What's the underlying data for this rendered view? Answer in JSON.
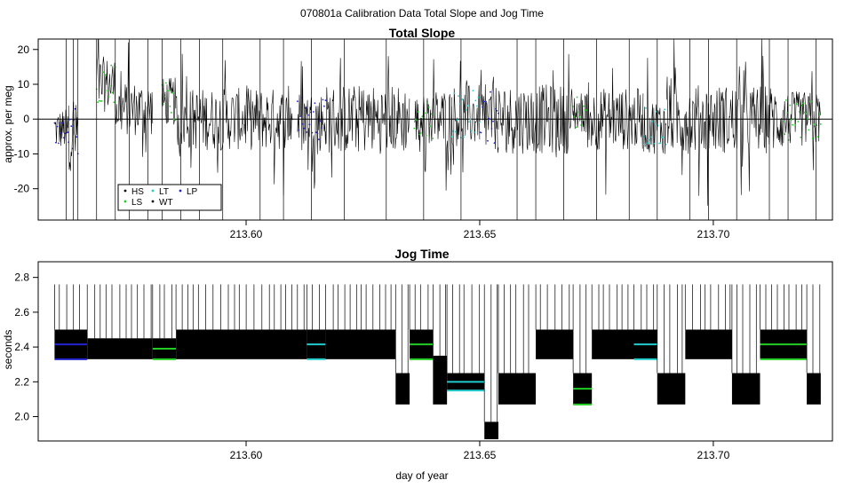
{
  "figure": {
    "title": "070801a   Calibration Data Total Slope and Jog Time",
    "xlabel": "day of year"
  },
  "colors": {
    "HS": "#000000",
    "LS": "#22cc22",
    "LT": "#22cccc",
    "WT": "#000000",
    "LP": "#2222cc",
    "trace": "#000000"
  },
  "chart_data": [
    {
      "type": "line",
      "title": "Total Slope",
      "xlabel": "",
      "ylabel": "approx. per meg",
      "xlim": [
        213.5555,
        213.7255
      ],
      "ylim": [
        -29,
        23
      ],
      "xticks": [
        213.6,
        213.65,
        213.7
      ],
      "xtick_labels": [
        "213.60",
        "213.65",
        "213.70"
      ],
      "yticks": [
        -20,
        -10,
        0,
        10,
        20
      ],
      "ytick_labels": [
        "-20",
        "-10",
        "0",
        "10",
        "20"
      ],
      "reference_line_y": 0,
      "legend": {
        "placement": "bottom-left",
        "entries": [
          {
            "label": "HS",
            "color": "#000000"
          },
          {
            "label": "LT",
            "color": "#22cccc"
          },
          {
            "label": "LP",
            "color": "#2222cc"
          },
          {
            "label": "LS",
            "color": "#22cc22"
          },
          {
            "label": "WT",
            "color": "#000000"
          }
        ]
      },
      "noise_bands": [
        {
          "x_start": 213.559,
          "x_end": 213.562,
          "center": -3,
          "spread": 6,
          "color": "LP"
        },
        {
          "x_start": 213.562,
          "x_end": 213.564,
          "center": -5,
          "spread": 10,
          "color": "LP"
        },
        {
          "x_start": 213.568,
          "x_end": 213.572,
          "center": 10,
          "spread": 8,
          "color": "LS"
        },
        {
          "x_start": 213.572,
          "x_end": 213.58,
          "center": 3,
          "spread": 8,
          "color": "HS"
        },
        {
          "x_start": 213.582,
          "x_end": 213.585,
          "center": 5,
          "spread": 7,
          "color": "LS"
        },
        {
          "x_start": 213.585,
          "x_end": 213.61,
          "center": 0,
          "spread": 9,
          "color": "HS"
        },
        {
          "x_start": 213.611,
          "x_end": 213.617,
          "center": 0,
          "spread": 8,
          "color": "LP"
        },
        {
          "x_start": 213.617,
          "x_end": 213.635,
          "center": 0,
          "spread": 10,
          "color": "HS"
        },
        {
          "x_start": 213.636,
          "x_end": 213.64,
          "center": 0,
          "spread": 7,
          "color": "LS"
        },
        {
          "x_start": 213.64,
          "x_end": 213.644,
          "center": 0,
          "spread": 9,
          "color": "HS"
        },
        {
          "x_start": 213.644,
          "x_end": 213.65,
          "center": 1,
          "spread": 9,
          "color": "LT"
        },
        {
          "x_start": 213.65,
          "x_end": 213.654,
          "center": 0,
          "spread": 10,
          "color": "LP"
        },
        {
          "x_start": 213.654,
          "x_end": 213.67,
          "center": 0,
          "spread": 10,
          "color": "HS"
        },
        {
          "x_start": 213.67,
          "x_end": 213.673,
          "center": 2,
          "spread": 6,
          "color": "LS"
        },
        {
          "x_start": 213.673,
          "x_end": 213.685,
          "center": 0,
          "spread": 9,
          "color": "HS"
        },
        {
          "x_start": 213.685,
          "x_end": 213.69,
          "center": -2,
          "spread": 8,
          "color": "LT"
        },
        {
          "x_start": 213.69,
          "x_end": 213.715,
          "center": 0,
          "spread": 10,
          "color": "HS"
        },
        {
          "x_start": 213.715,
          "x_end": 213.723,
          "center": 0,
          "spread": 8,
          "color": "LS"
        }
      ],
      "spikes": [
        213.5615,
        213.563,
        213.564,
        213.568,
        213.572,
        213.575,
        213.579,
        213.582,
        213.586,
        213.59,
        213.595,
        213.603,
        213.608,
        213.614,
        213.621,
        213.63,
        213.638,
        213.646,
        213.658,
        213.662,
        213.668,
        213.675,
        213.682,
        213.688,
        213.695,
        213.699,
        213.705,
        213.712,
        213.716,
        213.722
      ]
    },
    {
      "type": "line",
      "title": "Jog Time",
      "xlabel": "day of year",
      "ylabel": "seconds",
      "xlim": [
        213.5555,
        213.7255
      ],
      "ylim": [
        1.86,
        2.89
      ],
      "xticks": [
        213.6,
        213.65,
        213.7
      ],
      "xtick_labels": [
        "213.60",
        "213.65",
        "213.70"
      ],
      "yticks": [
        2.0,
        2.2,
        2.4,
        2.6,
        2.8
      ],
      "ytick_labels": [
        "2.0",
        "2.2",
        "2.4",
        "2.6",
        "2.8"
      ],
      "levels": [
        {
          "x_start": 213.559,
          "x_end": 213.566,
          "low": 2.33,
          "high": 2.5,
          "color": "LP"
        },
        {
          "x_start": 213.566,
          "x_end": 213.58,
          "low": 2.33,
          "high": 2.45,
          "color": "HS"
        },
        {
          "x_start": 213.58,
          "x_end": 213.585,
          "low": 2.33,
          "high": 2.45,
          "color": "LS"
        },
        {
          "x_start": 213.585,
          "x_end": 213.613,
          "low": 2.33,
          "high": 2.5,
          "color": "HS"
        },
        {
          "x_start": 213.613,
          "x_end": 213.617,
          "low": 2.33,
          "high": 2.5,
          "color": "LT"
        },
        {
          "x_start": 213.617,
          "x_end": 213.632,
          "low": 2.33,
          "high": 2.5,
          "color": "HS"
        },
        {
          "x_start": 213.632,
          "x_end": 213.635,
          "low": 2.07,
          "high": 2.25,
          "color": "HS"
        },
        {
          "x_start": 213.635,
          "x_end": 213.64,
          "low": 2.33,
          "high": 2.5,
          "color": "LS"
        },
        {
          "x_start": 213.64,
          "x_end": 213.643,
          "low": 2.07,
          "high": 2.35,
          "color": "HS"
        },
        {
          "x_start": 213.643,
          "x_end": 213.651,
          "low": 2.15,
          "high": 2.25,
          "color": "LT"
        },
        {
          "x_start": 213.651,
          "x_end": 213.654,
          "low": 1.87,
          "high": 1.97,
          "color": "HS"
        },
        {
          "x_start": 213.654,
          "x_end": 213.662,
          "low": 2.07,
          "high": 2.25,
          "color": "HS"
        },
        {
          "x_start": 213.662,
          "x_end": 213.67,
          "low": 2.33,
          "high": 2.5,
          "color": "HS"
        },
        {
          "x_start": 213.67,
          "x_end": 213.674,
          "low": 2.07,
          "high": 2.25,
          "color": "LS"
        },
        {
          "x_start": 213.674,
          "x_end": 213.683,
          "low": 2.33,
          "high": 2.5,
          "color": "HS"
        },
        {
          "x_start": 213.683,
          "x_end": 213.688,
          "low": 2.33,
          "high": 2.5,
          "color": "LT"
        },
        {
          "x_start": 213.688,
          "x_end": 213.694,
          "low": 2.07,
          "high": 2.25,
          "color": "HS"
        },
        {
          "x_start": 213.694,
          "x_end": 213.704,
          "low": 2.33,
          "high": 2.5,
          "color": "HS"
        },
        {
          "x_start": 213.704,
          "x_end": 213.71,
          "low": 2.07,
          "high": 2.25,
          "color": "HS"
        },
        {
          "x_start": 213.71,
          "x_end": 213.72,
          "low": 2.33,
          "high": 2.5,
          "color": "LS"
        },
        {
          "x_start": 213.72,
          "x_end": 213.723,
          "low": 2.07,
          "high": 2.25,
          "color": "HS"
        }
      ],
      "spike_top": 2.76
    }
  ]
}
